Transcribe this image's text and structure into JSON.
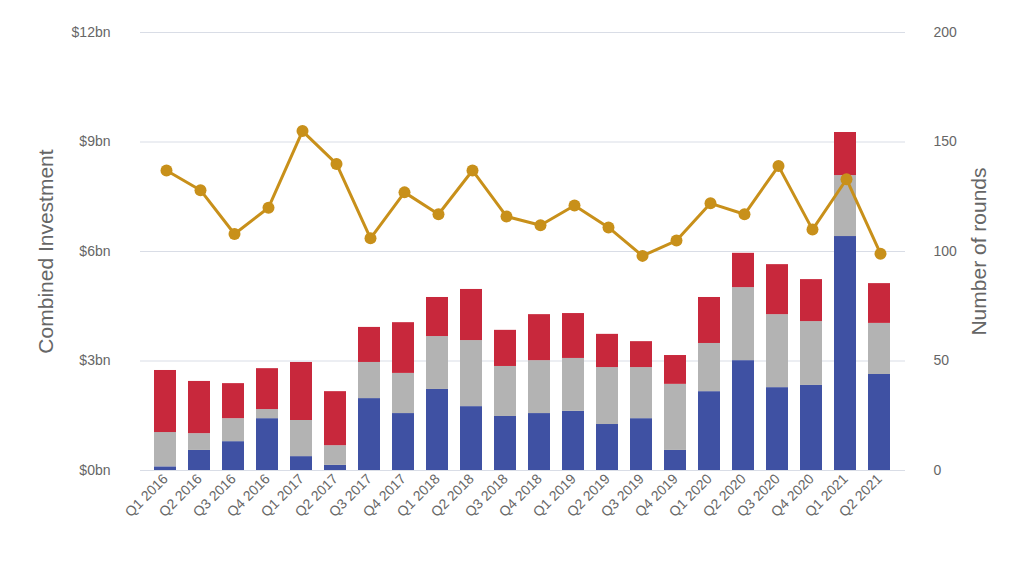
{
  "chart_data": {
    "type": "bar",
    "stacked": true,
    "grid": true,
    "y_label": "Combined Investment",
    "y2_label": "Number of rounds",
    "categories": [
      "Q1 2016",
      "Q2 2016",
      "Q3 2016",
      "Q4 2016",
      "Q1 2017",
      "Q2 2017",
      "Q3 2017",
      "Q4 2017",
      "Q1 2018",
      "Q2 2018",
      "Q3 2018",
      "Q4 2018",
      "Q1 2019",
      "Q2 2019",
      "Q3 2019",
      "Q4 2019",
      "Q1 2020",
      "Q2 2020",
      "Q3 2020",
      "Q4 2020",
      "Q1 2021",
      "Q2 2021"
    ],
    "ylim": [
      0,
      12
    ],
    "yticks": [
      {
        "value": 0,
        "label": "$0bn"
      },
      {
        "value": 3,
        "label": "$3bn"
      },
      {
        "value": 6,
        "label": "$6bn"
      },
      {
        "value": 9,
        "label": "$9bn"
      },
      {
        "value": 12,
        "label": "$12bn"
      }
    ],
    "y2lim": [
      0,
      200
    ],
    "y2ticks": [
      0,
      50,
      100,
      150,
      200
    ],
    "series": [
      {
        "type": "bar",
        "color": "#3f51a3",
        "values": [
          0.1,
          0.55,
          0.79,
          1.42,
          0.38,
          0.14,
          1.97,
          1.56,
          2.22,
          1.75,
          1.48,
          1.56,
          1.62,
          1.26,
          1.42,
          0.55,
          2.16,
          3.01,
          2.27,
          2.33,
          6.41,
          2.63
        ]
      },
      {
        "type": "bar",
        "color": "#b3b3b3",
        "values": [
          0.94,
          0.46,
          0.63,
          0.25,
          0.99,
          0.54,
          0.99,
          1.1,
          1.45,
          1.81,
          1.37,
          1.45,
          1.45,
          1.56,
          1.4,
          1.81,
          1.32,
          2.0,
          2.0,
          1.75,
          1.67,
          1.4
        ]
      },
      {
        "type": "bar",
        "color": "#c8283c",
        "values": [
          1.7,
          1.43,
          0.96,
          1.12,
          1.59,
          1.48,
          0.96,
          1.39,
          1.07,
          1.4,
          0.99,
          1.26,
          1.23,
          0.91,
          0.71,
          0.79,
          1.26,
          0.94,
          1.37,
          1.15,
          1.18,
          1.09
        ]
      },
      {
        "type": "line",
        "axis": "y2",
        "color": "#c8901a",
        "marker": "circle",
        "values": [
          137,
          128,
          108,
          120,
          155,
          140,
          106,
          127,
          117,
          137,
          116,
          112,
          121,
          111,
          98,
          105,
          122,
          117,
          139,
          110,
          133,
          99
        ]
      }
    ]
  }
}
